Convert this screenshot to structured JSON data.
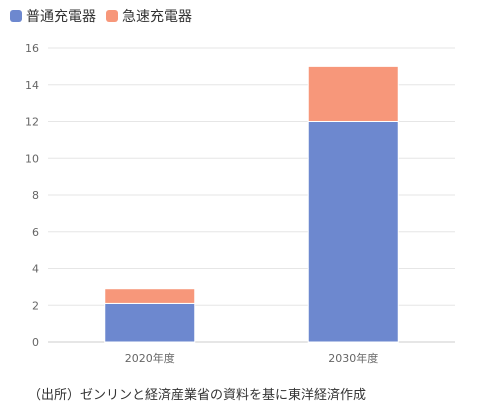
{
  "chart_data": {
    "type": "bar",
    "stacked": true,
    "categories": [
      "2020年度",
      "2030年度"
    ],
    "series": [
      {
        "name": "普通充電器",
        "values": [
          2.1,
          12
        ],
        "color": "#6d88cf"
      },
      {
        "name": "急速充電器",
        "values": [
          0.8,
          3
        ],
        "color": "#f7977a"
      }
    ],
    "ylim": [
      0,
      16
    ],
    "yticks": [
      0,
      2,
      4,
      6,
      8,
      10,
      12,
      14,
      16
    ],
    "grid": true,
    "legend_position": "top-left",
    "xlabel": "",
    "ylabel": ""
  },
  "footer": {
    "source": "（出所）ゼンリンと経済産業省の資料を基に東洋経済作成"
  }
}
